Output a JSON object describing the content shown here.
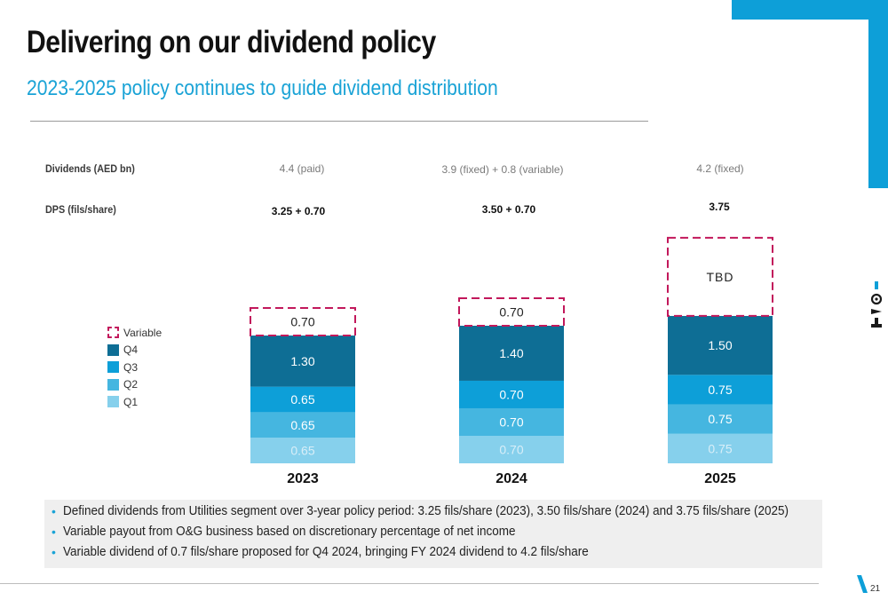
{
  "header": {
    "title": "Delivering on our dividend policy",
    "subtitle": "2023-2025 policy continues to guide dividend distribution"
  },
  "table_rows": {
    "dividends_label": "Dividends (AED bn)",
    "dps_label": "DPS (fils/share)",
    "dividends": [
      "4.4 (paid)",
      "3.9 (fixed) + 0.8 (variable)",
      "4.2 (fixed)"
    ],
    "dps": [
      "3.25 + 0.70",
      "3.50 + 0.70",
      "3.75"
    ]
  },
  "legend": [
    {
      "name": "Variable",
      "color": "#c2185b",
      "dashed": true
    },
    {
      "name": "Q4",
      "color": "#0e6e95"
    },
    {
      "name": "Q3",
      "color": "#0d9fd8"
    },
    {
      "name": "Q2",
      "color": "#45b6e0"
    },
    {
      "name": "Q1",
      "color": "#86d0ec"
    }
  ],
  "chart_data": {
    "type": "bar",
    "stacked": true,
    "categories": [
      "2023",
      "2024",
      "2025"
    ],
    "series": [
      {
        "name": "Q1",
        "values": [
          0.65,
          0.7,
          0.75
        ],
        "labels": [
          "0.65",
          "0.70",
          "0.75"
        ],
        "color": "#86d0ec"
      },
      {
        "name": "Q2",
        "values": [
          0.65,
          0.7,
          0.75
        ],
        "labels": [
          "0.65",
          "0.70",
          "0.75"
        ],
        "color": "#45b6e0"
      },
      {
        "name": "Q3",
        "values": [
          0.65,
          0.7,
          0.75
        ],
        "labels": [
          "0.65",
          "0.70",
          "0.75"
        ],
        "color": "#0d9fd8"
      },
      {
        "name": "Q4",
        "values": [
          1.3,
          1.4,
          1.5
        ],
        "labels": [
          "1.30",
          "1.40",
          "1.50"
        ],
        "color": "#0e6e95"
      },
      {
        "name": "Variable",
        "values": [
          0.7,
          0.7,
          null
        ],
        "labels": [
          "0.70",
          "0.70",
          "TBD"
        ],
        "color": "#c2185b",
        "dashed": true
      }
    ],
    "ylim": [
      0,
      4.4
    ],
    "grid": false,
    "legend_position": "left"
  },
  "bullets": [
    "Defined dividends from Utilities segment over 3-year policy period: 3.25 fils/share (2023), 3.50 fils/share (2024) and 3.75 fils/share (2025)",
    "Variable payout from O&G business based on discretionary percentage of net income",
    "Variable dividend of 0.7 fils/share proposed for Q4 2024, bringing FY 2024 dividend to 4.2 fils/share"
  ],
  "footer": {
    "page_number": "21"
  },
  "colors": {
    "accent": "#0d9fd8",
    "brand_dark": "#0e6e95",
    "variable": "#c2185b"
  }
}
